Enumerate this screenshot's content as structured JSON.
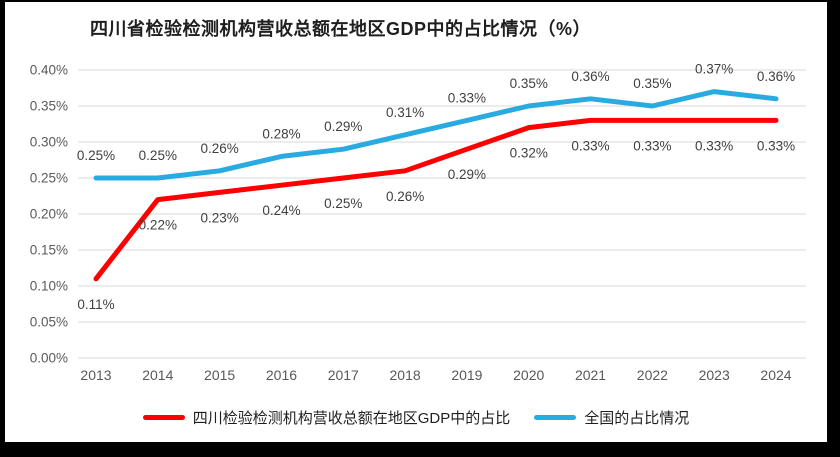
{
  "chart_data": {
    "type": "line",
    "title": "四川省检验检测机构营收总额在地区GDP中的占比情况（%）",
    "categories": [
      "2013",
      "2014",
      "2015",
      "2016",
      "2017",
      "2018",
      "2019",
      "2020",
      "2021",
      "2022",
      "2023",
      "2024"
    ],
    "series": [
      {
        "id": "sichuan",
        "name": "四川检验检测机构营收总额在地区GDP中的占比",
        "color": "#FF0000",
        "label_position": "below",
        "values": [
          0.11,
          0.22,
          0.23,
          0.24,
          0.25,
          0.26,
          0.29,
          0.32,
          0.33,
          0.33,
          0.33,
          0.33
        ],
        "labels": [
          "0.11%",
          "0.22%",
          "0.23%",
          "0.24%",
          "0.25%",
          "0.26%",
          "0.29%",
          "0.32%",
          "0.33%",
          "0.33%",
          "0.33%",
          "0.33%"
        ]
      },
      {
        "id": "national",
        "name": "全国的占比情况",
        "color": "#29ABE2",
        "label_position": "above",
        "values": [
          0.25,
          0.25,
          0.26,
          0.28,
          0.29,
          0.31,
          0.33,
          0.35,
          0.36,
          0.35,
          0.37,
          0.36
        ],
        "labels": [
          "0.25%",
          "0.25%",
          "0.26%",
          "0.28%",
          "0.29%",
          "0.31%",
          "0.33%",
          "0.35%",
          "0.36%",
          "0.35%",
          "0.37%",
          "0.36%"
        ]
      }
    ],
    "y_axis": {
      "max": 0.4,
      "ticks": [
        {
          "label": "0.00%",
          "value": 0.0
        },
        {
          "label": "0.05%",
          "value": 0.05
        },
        {
          "label": "0.10%",
          "value": 0.1
        },
        {
          "label": "0.15%",
          "value": 0.15
        },
        {
          "label": "0.20%",
          "value": 0.2
        },
        {
          "label": "0.25%",
          "value": 0.25
        },
        {
          "label": "0.30%",
          "value": 0.3
        },
        {
          "label": "0.35%",
          "value": 0.35
        },
        {
          "label": "0.40%",
          "value": 0.4
        }
      ]
    },
    "grid": true,
    "legend_position": "bottom"
  },
  "colors": {
    "gridline": "#d9d9d9",
    "axis_text": "#595959",
    "data_label": "#404040",
    "frame": "#000000",
    "panel": "#ffffff"
  }
}
